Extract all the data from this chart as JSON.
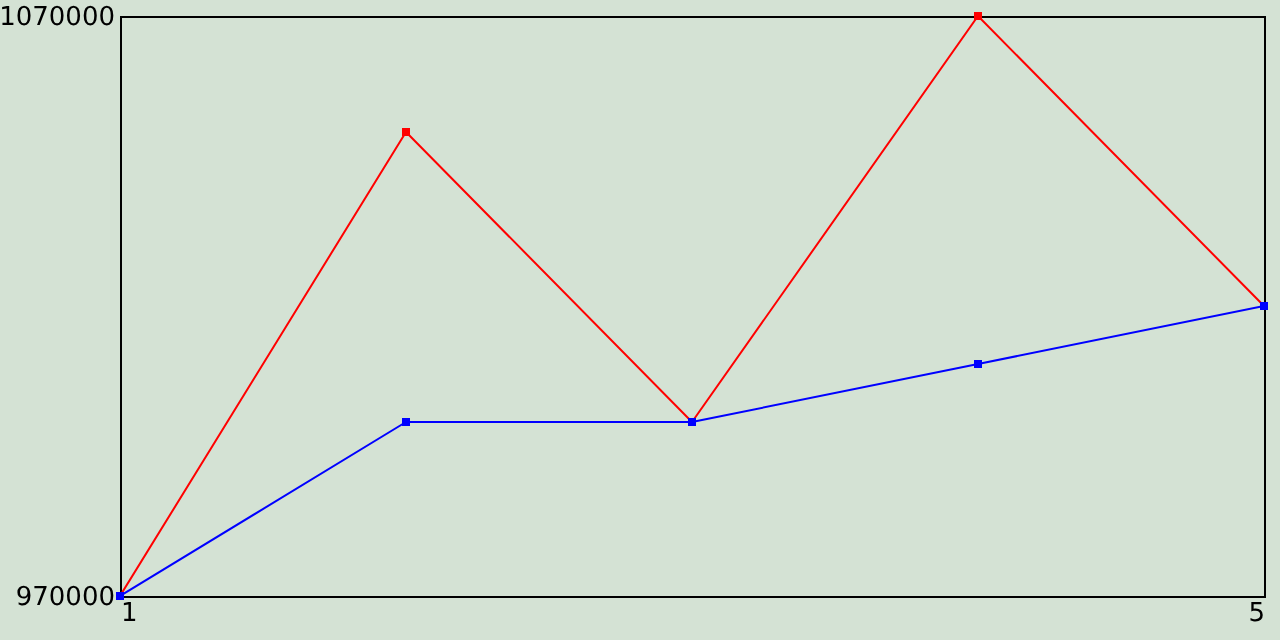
{
  "chart_data": {
    "type": "line",
    "x": [
      1,
      2,
      3,
      4,
      5
    ],
    "series": [
      {
        "color": "#ff0000",
        "values": [
          970000,
          1050000,
          1000000,
          1070000,
          1020000
        ]
      },
      {
        "color": "#0000ff",
        "values": [
          970000,
          1000000,
          1000000,
          1010000,
          1020000
        ]
      }
    ],
    "xlim": [
      1,
      5
    ],
    "xticks": [
      1,
      5
    ],
    "ylim": [
      970000,
      1070000
    ],
    "yticks": [
      970000,
      1070000
    ],
    "marker": "square",
    "grid": false
  }
}
